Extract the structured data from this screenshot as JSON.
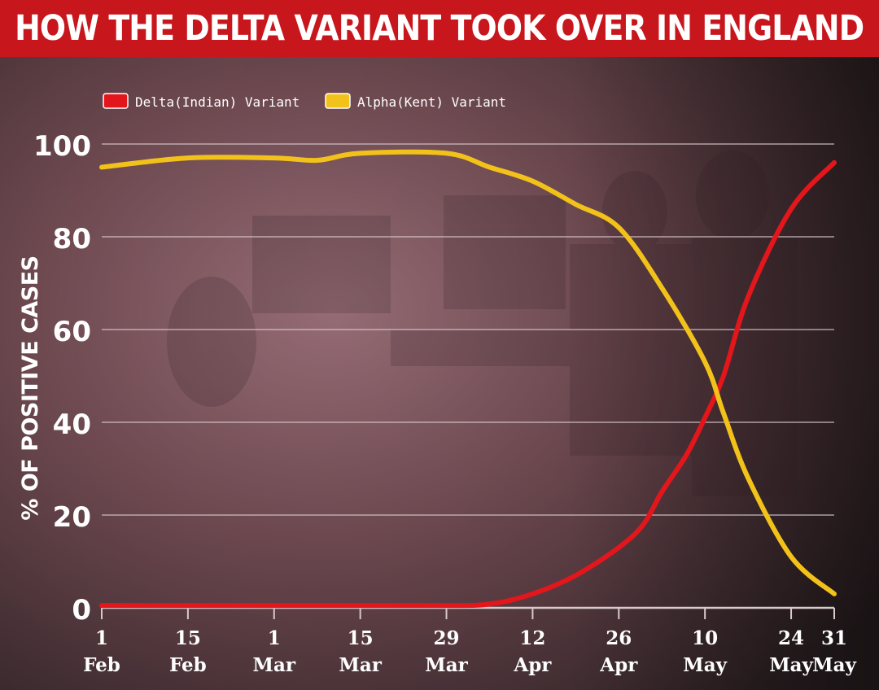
{
  "header": {
    "title": "HOW THE DELTA VARIANT TOOK OVER IN ENGLAND"
  },
  "colors": {
    "title_bar": "#c8161d",
    "delta": "#e3161c",
    "alpha": "#f2c21a",
    "text": "#ffffff",
    "grid": "#d8c9cc"
  },
  "chart_data": {
    "type": "line",
    "ylabel": "% OF POSITIVE CASES",
    "xlabel": "",
    "ylim": [
      0,
      100
    ],
    "y_ticks": [
      0,
      20,
      40,
      60,
      80,
      100
    ],
    "grid": "horizontal",
    "legend_position": "top-left",
    "x_ticks": [
      {
        "date": "2021-02-01",
        "label_top": "1",
        "label_bottom": "Feb"
      },
      {
        "date": "2021-02-15",
        "label_top": "15",
        "label_bottom": "Feb"
      },
      {
        "date": "2021-03-01",
        "label_top": "1",
        "label_bottom": "Mar"
      },
      {
        "date": "2021-03-15",
        "label_top": "15",
        "label_bottom": "Mar"
      },
      {
        "date": "2021-03-29",
        "label_top": "29",
        "label_bottom": "Mar"
      },
      {
        "date": "2021-04-12",
        "label_top": "12",
        "label_bottom": "Apr"
      },
      {
        "date": "2021-04-26",
        "label_top": "26",
        "label_bottom": "Apr"
      },
      {
        "date": "2021-05-10",
        "label_top": "10",
        "label_bottom": "May"
      },
      {
        "date": "2021-05-24",
        "label_top": "24",
        "label_bottom": "May"
      },
      {
        "date": "2021-05-31",
        "label_top": "31",
        "label_bottom": "May"
      }
    ],
    "series": [
      {
        "name": "Delta(Indian) Variant",
        "color": "#e3161c",
        "points": [
          {
            "x": "2021-02-01",
            "y": 0.5
          },
          {
            "x": "2021-02-15",
            "y": 0.5
          },
          {
            "x": "2021-03-01",
            "y": 0.5
          },
          {
            "x": "2021-03-15",
            "y": 0.5
          },
          {
            "x": "2021-03-29",
            "y": 0.5
          },
          {
            "x": "2021-04-05",
            "y": 0.8
          },
          {
            "x": "2021-04-12",
            "y": 3
          },
          {
            "x": "2021-04-19",
            "y": 7
          },
          {
            "x": "2021-04-26",
            "y": 13
          },
          {
            "x": "2021-04-30",
            "y": 18
          },
          {
            "x": "2021-05-03",
            "y": 25
          },
          {
            "x": "2021-05-07",
            "y": 33
          },
          {
            "x": "2021-05-10",
            "y": 41
          },
          {
            "x": "2021-05-13",
            "y": 50
          },
          {
            "x": "2021-05-17",
            "y": 67
          },
          {
            "x": "2021-05-24",
            "y": 86
          },
          {
            "x": "2021-05-31",
            "y": 96
          }
        ]
      },
      {
        "name": "Alpha(Kent) Variant",
        "color": "#f2c21a",
        "points": [
          {
            "x": "2021-02-01",
            "y": 95
          },
          {
            "x": "2021-02-15",
            "y": 97
          },
          {
            "x": "2021-03-01",
            "y": 97
          },
          {
            "x": "2021-03-08",
            "y": 96.5
          },
          {
            "x": "2021-03-15",
            "y": 98
          },
          {
            "x": "2021-03-29",
            "y": 98
          },
          {
            "x": "2021-04-05",
            "y": 95
          },
          {
            "x": "2021-04-12",
            "y": 92
          },
          {
            "x": "2021-04-19",
            "y": 87
          },
          {
            "x": "2021-04-26",
            "y": 82
          },
          {
            "x": "2021-05-03",
            "y": 69
          },
          {
            "x": "2021-05-10",
            "y": 53
          },
          {
            "x": "2021-05-13",
            "y": 42
          },
          {
            "x": "2021-05-17",
            "y": 28
          },
          {
            "x": "2021-05-24",
            "y": 11
          },
          {
            "x": "2021-05-31",
            "y": 3
          }
        ]
      }
    ]
  }
}
